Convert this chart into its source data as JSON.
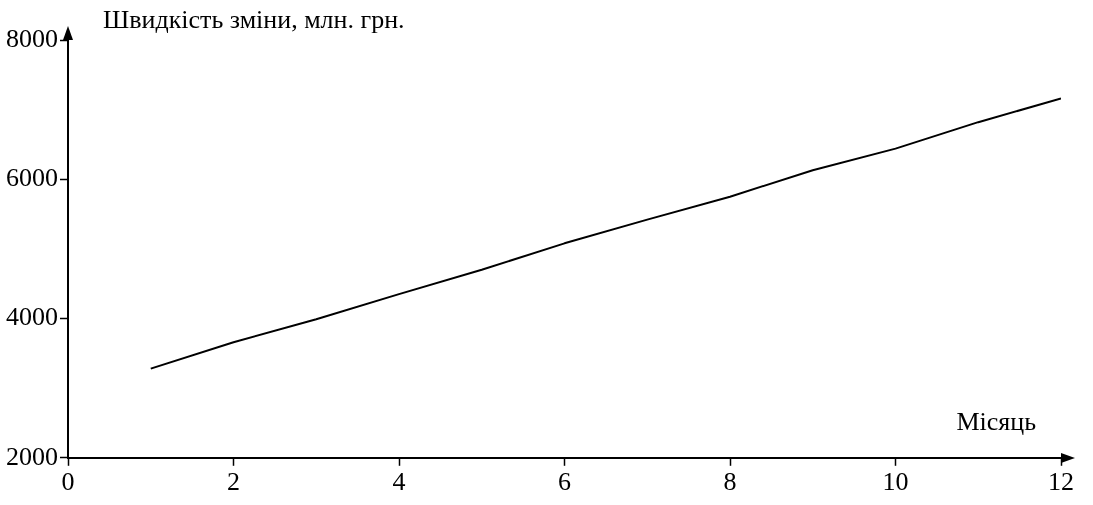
{
  "chart_data": {
    "type": "line",
    "ylabel": "Швидкість зміни, млн. грн.",
    "xlabel": "Місяць",
    "x": [
      1,
      2,
      3,
      4,
      5,
      6,
      7,
      8,
      9,
      10,
      11,
      12
    ],
    "series": [
      {
        "color": "#000000",
        "values": [
          3280,
          3660,
          3990,
          4350,
          4700,
          5080,
          5420,
          5750,
          6130,
          6440,
          6820,
          7160
        ]
      }
    ],
    "xlim": [
      0,
      12
    ],
    "xticks": [
      0,
      2,
      4,
      6,
      8,
      10,
      12
    ],
    "ylim": [
      2000,
      8000
    ],
    "yticks": [
      2000,
      4000,
      6000,
      8000
    ],
    "grid": false,
    "legend": false,
    "marker": "none",
    "line_style": "solid"
  }
}
